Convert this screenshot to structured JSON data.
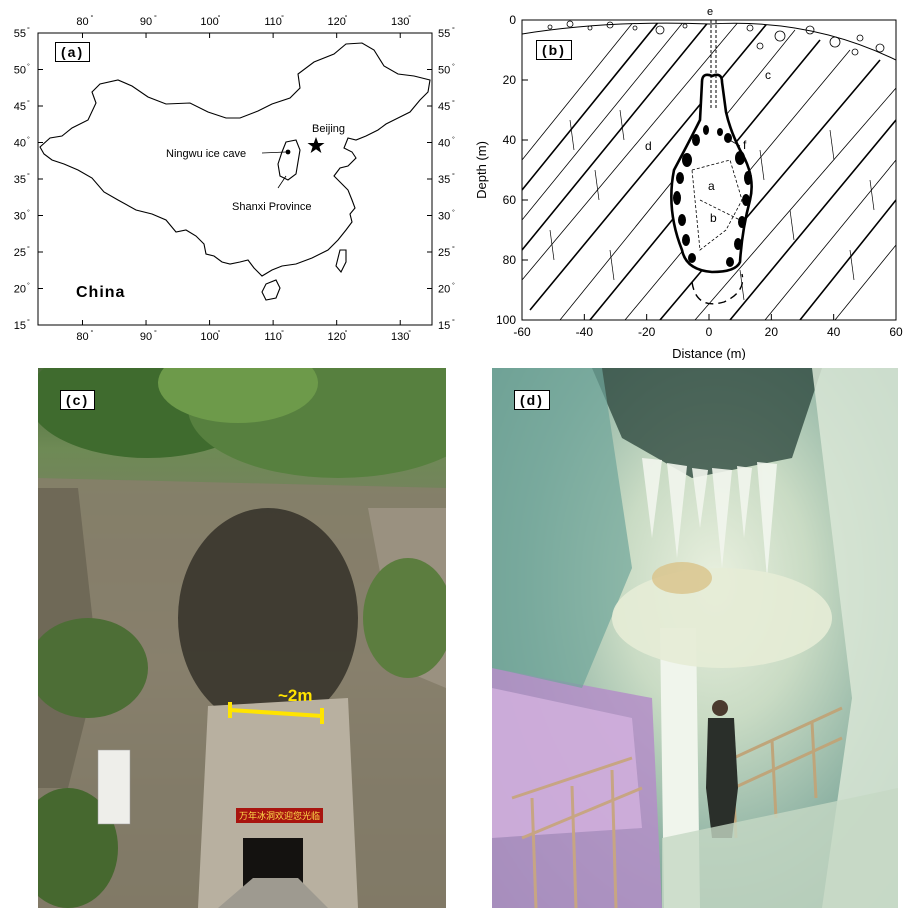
{
  "panel_a": {
    "tag": "(a)",
    "top_ticks": [
      "80",
      "90",
      "100",
      "110",
      "120",
      "130"
    ],
    "bottom_ticks": [
      "80",
      "90",
      "100",
      "110",
      "120",
      "130"
    ],
    "left_ticks": [
      "55",
      "50",
      "45",
      "40",
      "35",
      "30",
      "25",
      "20",
      "15"
    ],
    "right_ticks": [
      "55",
      "50",
      "45",
      "40",
      "35",
      "30",
      "25",
      "20",
      "15"
    ],
    "deg": "°",
    "labels": {
      "beijing": "Beijing",
      "cave": "Ningwu ice cave",
      "province": "Shanxi Province",
      "country": "China"
    }
  },
  "panel_b": {
    "tag": "(b)",
    "ylabel": "Depth (m)",
    "xlabel": "Distance (m)",
    "x_ticks": [
      "-60",
      "-40",
      "-20",
      "0",
      "20",
      "40",
      "60"
    ],
    "y_ticks": [
      "0",
      "20",
      "40",
      "60",
      "80",
      "100"
    ],
    "letters": {
      "a": "a",
      "b": "b",
      "c": "c",
      "d": "d",
      "e": "e",
      "f": "f"
    }
  },
  "panel_c": {
    "tag": "(c)",
    "dimension": "~2m",
    "sign_text": "万年冰洞欢迎您光临"
  },
  "panel_d": {
    "tag": "(d)"
  },
  "colors": {
    "dimension": "#ffe400",
    "sign_bg": "#a8140f"
  }
}
